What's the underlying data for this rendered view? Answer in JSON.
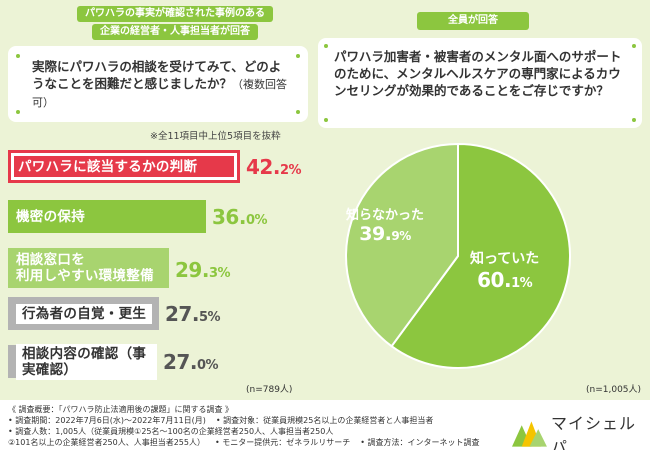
{
  "left_panel": {
    "tag_lines": [
      "パワハラの事実が確認された事例のある",
      "企業の経営者・人事担当者が回答"
    ],
    "question": "実際にパワハラの相談を受けてみて、どのようなことを困難だと感じましたか？",
    "question_sub": "（複数回答可）",
    "note": "※全11項目中上位5項目を抜粋",
    "n": "(n=789人)"
  },
  "right_panel": {
    "tag": "全員が回答",
    "question": "パワハラ加害者・被害者のメンタル面へのサポートのために、メンタルヘルスケアの専門家によるカウンセリングが効果的であることをご存じですか？",
    "n": "(n=1,005人)"
  },
  "chart_data": [
    {
      "type": "bar",
      "orientation": "horizontal",
      "categories": [
        "パワハラに該当するかの判断",
        "機密の保持",
        "相談窓口を\n利用しやすい環境整備",
        "行為者の自覚・更生",
        "相談内容の確認（事実確認）"
      ],
      "values": [
        42.2,
        36.0,
        29.3,
        27.5,
        27.0
      ],
      "value_labels": [
        {
          "int": "42.",
          "dec": "2",
          "unit": "%"
        },
        {
          "int": "36.",
          "dec": "0",
          "unit": "%"
        },
        {
          "int": "29.",
          "dec": "3",
          "unit": "%"
        },
        {
          "int": "27.",
          "dec": "5",
          "unit": "%"
        },
        {
          "int": "27.",
          "dec": "0",
          "unit": "%"
        }
      ],
      "colors": [
        "#e6394a",
        "#8cc63f",
        "#a8d46f",
        "#b3b3b3",
        "#b3b3b3"
      ],
      "unit": "%"
    },
    {
      "type": "pie",
      "categories": [
        "知っていた",
        "知らなかった"
      ],
      "values": [
        60.1,
        39.9
      ],
      "value_labels": [
        {
          "int": "60.",
          "dec": "1",
          "unit": "%"
        },
        {
          "int": "39.",
          "dec": "9",
          "unit": "%"
        }
      ],
      "colors": [
        "#8cc63f",
        "#a8d46f"
      ],
      "unit": "%"
    }
  ],
  "footer": {
    "row1": [
      "《 調査概要：「パワハラ防止法適用後の課題」に関する調査 》"
    ],
    "row2": [
      "• 調査期間：2022年7月6日(水)～2022年7月11日(月)",
      "• 調査対象：従業員規模25名以上の企業経営者と人事担当者"
    ],
    "row3": [
      "• 調査人数：1,005人（従業員規模①25名～100名の企業経営者250人、人事担当者250人"
    ],
    "row4": [
      "②101名以上の企業経営者250人、人事担当者255人）",
      "• モニター提供元：ゼネラルリサーチ",
      "• 調査方法：インターネット調査"
    ]
  },
  "logo": {
    "text": "マイシェルパ"
  }
}
